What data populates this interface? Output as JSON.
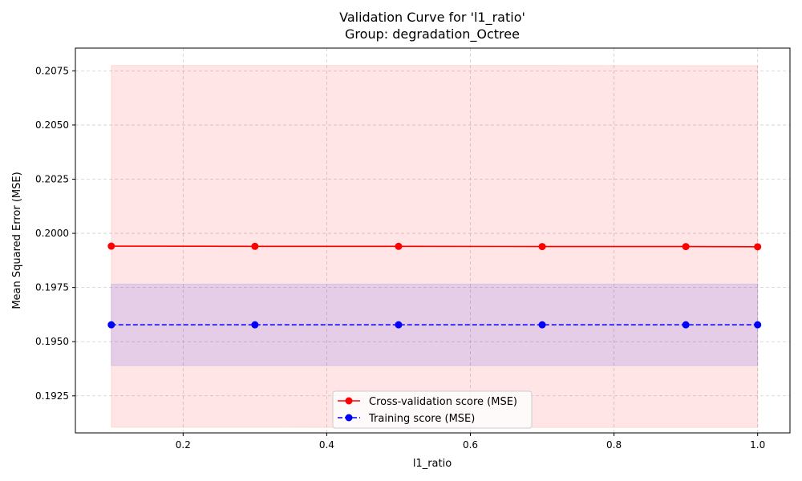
{
  "chart_data": {
    "type": "line",
    "title": "Validation Curve for 'l1_ratio'",
    "subtitle": "Group: degradation_Octree",
    "xlabel": "l1_ratio",
    "ylabel": "Mean Squared Error (MSE)",
    "xlim": [
      0.05,
      1.045
    ],
    "ylim": [
      0.19079,
      0.20855
    ],
    "xticks": [
      0.2,
      0.4,
      0.6,
      0.8,
      1.0
    ],
    "xtick_labels": [
      "0.2",
      "0.4",
      "0.6",
      "0.8",
      "1.0"
    ],
    "yticks": [
      0.1925,
      0.195,
      0.1975,
      0.2,
      0.2025,
      0.205,
      0.2075
    ],
    "ytick_labels": [
      "0.1925",
      "0.1950",
      "0.1975",
      "0.2000",
      "0.2025",
      "0.2050",
      "0.2075"
    ],
    "grid": true,
    "legend_position": "bottom-center",
    "x": [
      0.1,
      0.3,
      0.5,
      0.7,
      0.9,
      1.0
    ],
    "series": [
      {
        "name": "Cross-validation score (MSE)",
        "color": "#ff0000",
        "linestyle": "solid",
        "marker": "circle",
        "values": [
          0.19941,
          0.1994,
          0.1994,
          0.19939,
          0.19939,
          0.19938
        ],
        "band_lower": [
          0.19105,
          0.19105,
          0.19104,
          0.19104,
          0.19104,
          0.19104
        ],
        "band_upper": [
          0.20775,
          0.20775,
          0.20775,
          0.20775,
          0.20774,
          0.20774
        ],
        "band_color": "#ff0000"
      },
      {
        "name": "Training score (MSE)",
        "color": "#0000ff",
        "linestyle": "dashed",
        "marker": "circle",
        "values": [
          0.19578,
          0.19578,
          0.19578,
          0.19578,
          0.19578,
          0.19578
        ],
        "band_lower": [
          0.1939,
          0.1939,
          0.1939,
          0.1939,
          0.1939,
          0.1939
        ],
        "band_upper": [
          0.19766,
          0.19766,
          0.19766,
          0.19766,
          0.19766,
          0.19766
        ],
        "band_color": "#0000ff"
      }
    ]
  }
}
